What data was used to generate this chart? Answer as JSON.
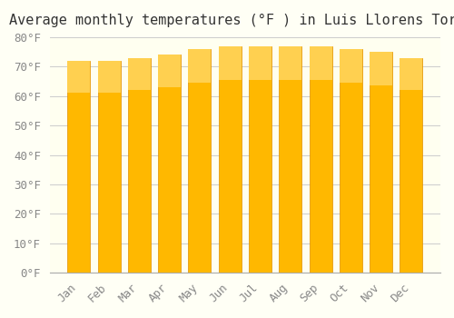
{
  "title": "Average monthly temperatures (°F ) in Luis Llorens Torres",
  "months": [
    "Jan",
    "Feb",
    "Mar",
    "Apr",
    "May",
    "Jun",
    "Jul",
    "Aug",
    "Sep",
    "Oct",
    "Nov",
    "Dec"
  ],
  "values": [
    72,
    72,
    73,
    74,
    76,
    77,
    77,
    77,
    77,
    76,
    75,
    73
  ],
  "ylim": [
    0,
    80
  ],
  "yticks": [
    0,
    10,
    20,
    30,
    40,
    50,
    60,
    70,
    80
  ],
  "bar_color_top": "#FFC107",
  "bar_color_bottom": "#FFB300",
  "bar_edge_color": "#E6A000",
  "background_color": "#FFFFF0",
  "grid_color": "#CCCCCC",
  "title_fontsize": 11,
  "tick_fontsize": 9,
  "figure_facecolor": "#FFFFF5"
}
